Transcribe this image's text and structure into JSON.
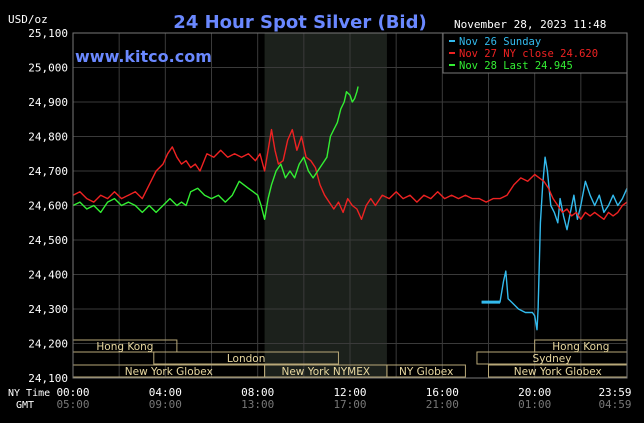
{
  "chart_data": {
    "type": "line",
    "title": "24 Hour Spot Silver (Bid)",
    "ylabel": "USD/oz",
    "watermark": "www.kitco.com",
    "timestamp": "November 28, 2023 11:48",
    "ylim": [
      24.1,
      25.1
    ],
    "xlim": [
      0,
      24
    ],
    "grid": true,
    "legend_position": "top-right",
    "y_ticks": [
      {
        "value": 25.1,
        "label": "25,100"
      },
      {
        "value": 25.0,
        "label": "25,000"
      },
      {
        "value": 24.9,
        "label": "24,900"
      },
      {
        "value": 24.8,
        "label": "24,800"
      },
      {
        "value": 24.7,
        "label": "24,700"
      },
      {
        "value": 24.6,
        "label": "24,600"
      },
      {
        "value": 24.5,
        "label": "24,500"
      },
      {
        "value": 24.4,
        "label": "24,400"
      },
      {
        "value": 24.3,
        "label": "24,300"
      },
      {
        "value": 24.2,
        "label": "24,200"
      },
      {
        "value": 24.1,
        "label": "24,100"
      }
    ],
    "x_ticks": [
      {
        "value": 0,
        "ny": "00:00",
        "gmt": "05:00"
      },
      {
        "value": 4,
        "ny": "04:00",
        "gmt": "09:00"
      },
      {
        "value": 8,
        "ny": "08:00",
        "gmt": "13:00"
      },
      {
        "value": 12,
        "ny": "12:00",
        "gmt": "17:00"
      },
      {
        "value": 16,
        "ny": "16:00",
        "gmt": "21:00"
      },
      {
        "value": 20,
        "ny": "20:00",
        "gmt": "01:00"
      },
      {
        "value": 24,
        "ny": "23:59",
        "gmt": "04:59"
      }
    ],
    "axis_row_labels": {
      "ny": "NY Time",
      "gmt": "GMT"
    },
    "shaded_session": {
      "start": 8.3,
      "end": 13.6
    },
    "sessions": [
      {
        "label": "Hong Kong",
        "start": 0,
        "end": 4.5,
        "row": 0
      },
      {
        "label": "London",
        "start": 3.5,
        "end": 11.5,
        "row": 1
      },
      {
        "label": "New York Globex",
        "start": 0,
        "end": 8.3,
        "row": 2
      },
      {
        "label": "New York NYMEX",
        "start": 8.3,
        "end": 13.6,
        "row": 2
      },
      {
        "label": "NY Globex",
        "start": 13.6,
        "end": 17.0,
        "row": 2
      },
      {
        "label": "Hong Kong",
        "start": 20.0,
        "end": 24,
        "row": 0
      },
      {
        "label": "Sydney",
        "start": 17.5,
        "end": 24,
        "row": 1
      },
      {
        "label": "New York Globex",
        "start": 18.0,
        "end": 24,
        "row": 2
      }
    ],
    "series": [
      {
        "name": "Nov 26 Sunday",
        "color": "#33bbee",
        "points": [
          [
            17.7,
            24.32
          ],
          [
            18.5,
            24.32
          ],
          [
            18.65,
            24.38
          ],
          [
            18.75,
            24.41
          ],
          [
            18.85,
            24.33
          ],
          [
            19.0,
            24.32
          ],
          [
            19.3,
            24.3
          ],
          [
            19.6,
            24.29
          ],
          [
            19.9,
            24.29
          ],
          [
            20.0,
            24.28
          ],
          [
            20.1,
            24.24
          ],
          [
            20.15,
            24.3
          ],
          [
            20.25,
            24.55
          ],
          [
            20.35,
            24.66
          ],
          [
            20.45,
            24.74
          ],
          [
            20.55,
            24.7
          ],
          [
            20.7,
            24.6
          ],
          [
            20.85,
            24.58
          ],
          [
            21.0,
            24.55
          ],
          [
            21.1,
            24.62
          ],
          [
            21.25,
            24.57
          ],
          [
            21.4,
            24.53
          ],
          [
            21.55,
            24.58
          ],
          [
            21.7,
            24.63
          ],
          [
            21.85,
            24.56
          ],
          [
            22.0,
            24.6
          ],
          [
            22.2,
            24.67
          ],
          [
            22.4,
            24.63
          ],
          [
            22.6,
            24.6
          ],
          [
            22.8,
            24.63
          ],
          [
            23.0,
            24.58
          ],
          [
            23.2,
            24.6
          ],
          [
            23.4,
            24.63
          ],
          [
            23.6,
            24.6
          ],
          [
            23.8,
            24.62
          ],
          [
            24.0,
            24.65
          ]
        ]
      },
      {
        "name": "Nov 27 NY close 24.620",
        "color": "#ee2222",
        "points": [
          [
            0.0,
            24.63
          ],
          [
            0.3,
            24.64
          ],
          [
            0.6,
            24.62
          ],
          [
            0.9,
            24.61
          ],
          [
            1.2,
            24.63
          ],
          [
            1.5,
            24.62
          ],
          [
            1.8,
            24.64
          ],
          [
            2.1,
            24.62
          ],
          [
            2.4,
            24.63
          ],
          [
            2.7,
            24.64
          ],
          [
            3.0,
            24.62
          ],
          [
            3.3,
            24.66
          ],
          [
            3.6,
            24.7
          ],
          [
            3.9,
            24.72
          ],
          [
            4.1,
            24.75
          ],
          [
            4.3,
            24.77
          ],
          [
            4.5,
            24.74
          ],
          [
            4.7,
            24.72
          ],
          [
            4.9,
            24.73
          ],
          [
            5.1,
            24.71
          ],
          [
            5.3,
            24.72
          ],
          [
            5.5,
            24.7
          ],
          [
            5.8,
            24.75
          ],
          [
            6.1,
            24.74
          ],
          [
            6.4,
            24.76
          ],
          [
            6.7,
            24.74
          ],
          [
            7.0,
            24.75
          ],
          [
            7.3,
            24.74
          ],
          [
            7.6,
            24.75
          ],
          [
            7.9,
            24.73
          ],
          [
            8.1,
            24.75
          ],
          [
            8.3,
            24.7
          ],
          [
            8.45,
            24.76
          ],
          [
            8.6,
            24.82
          ],
          [
            8.75,
            24.76
          ],
          [
            8.9,
            24.72
          ],
          [
            9.1,
            24.73
          ],
          [
            9.3,
            24.79
          ],
          [
            9.5,
            24.82
          ],
          [
            9.7,
            24.76
          ],
          [
            9.9,
            24.8
          ],
          [
            10.1,
            24.74
          ],
          [
            10.3,
            24.73
          ],
          [
            10.5,
            24.71
          ],
          [
            10.7,
            24.66
          ],
          [
            10.9,
            24.63
          ],
          [
            11.1,
            24.61
          ],
          [
            11.3,
            24.59
          ],
          [
            11.5,
            24.61
          ],
          [
            11.7,
            24.58
          ],
          [
            11.9,
            24.62
          ],
          [
            12.1,
            24.6
          ],
          [
            12.3,
            24.59
          ],
          [
            12.5,
            24.56
          ],
          [
            12.7,
            24.6
          ],
          [
            12.9,
            24.62
          ],
          [
            13.1,
            24.6
          ],
          [
            13.4,
            24.63
          ],
          [
            13.7,
            24.62
          ],
          [
            14.0,
            24.64
          ],
          [
            14.3,
            24.62
          ],
          [
            14.6,
            24.63
          ],
          [
            14.9,
            24.61
          ],
          [
            15.2,
            24.63
          ],
          [
            15.5,
            24.62
          ],
          [
            15.8,
            24.64
          ],
          [
            16.1,
            24.62
          ],
          [
            16.4,
            24.63
          ],
          [
            16.7,
            24.62
          ],
          [
            17.0,
            24.63
          ],
          [
            17.3,
            24.62
          ],
          [
            17.6,
            24.62
          ],
          [
            17.9,
            24.61
          ],
          [
            18.2,
            24.62
          ],
          [
            18.5,
            24.62
          ],
          [
            18.8,
            24.63
          ],
          [
            19.1,
            24.66
          ],
          [
            19.4,
            24.68
          ],
          [
            19.7,
            24.67
          ],
          [
            20.0,
            24.69
          ],
          [
            20.2,
            24.68
          ],
          [
            20.4,
            24.67
          ],
          [
            20.6,
            24.65
          ],
          [
            20.8,
            24.62
          ],
          [
            21.0,
            24.6
          ],
          [
            21.2,
            24.58
          ],
          [
            21.4,
            24.59
          ],
          [
            21.6,
            24.57
          ],
          [
            21.8,
            24.58
          ],
          [
            22.0,
            24.56
          ],
          [
            22.2,
            24.58
          ],
          [
            22.4,
            24.57
          ],
          [
            22.6,
            24.58
          ],
          [
            22.8,
            24.57
          ],
          [
            23.0,
            24.56
          ],
          [
            23.2,
            24.58
          ],
          [
            23.4,
            24.57
          ],
          [
            23.6,
            24.58
          ],
          [
            23.8,
            24.6
          ],
          [
            24.0,
            24.61
          ]
        ]
      },
      {
        "name": "Nov 28 Last 24.945",
        "color": "#33ee33",
        "points": [
          [
            0.0,
            24.6
          ],
          [
            0.3,
            24.61
          ],
          [
            0.6,
            24.59
          ],
          [
            0.9,
            24.6
          ],
          [
            1.2,
            24.58
          ],
          [
            1.5,
            24.61
          ],
          [
            1.8,
            24.62
          ],
          [
            2.1,
            24.6
          ],
          [
            2.4,
            24.61
          ],
          [
            2.7,
            24.6
          ],
          [
            3.0,
            24.58
          ],
          [
            3.3,
            24.6
          ],
          [
            3.6,
            24.58
          ],
          [
            3.9,
            24.6
          ],
          [
            4.2,
            24.62
          ],
          [
            4.5,
            24.6
          ],
          [
            4.7,
            24.61
          ],
          [
            4.9,
            24.6
          ],
          [
            5.1,
            24.64
          ],
          [
            5.4,
            24.65
          ],
          [
            5.7,
            24.63
          ],
          [
            6.0,
            24.62
          ],
          [
            6.3,
            24.63
          ],
          [
            6.6,
            24.61
          ],
          [
            6.9,
            24.63
          ],
          [
            7.2,
            24.67
          ],
          [
            7.4,
            24.66
          ],
          [
            7.6,
            24.65
          ],
          [
            7.8,
            24.64
          ],
          [
            8.0,
            24.63
          ],
          [
            8.15,
            24.6
          ],
          [
            8.3,
            24.56
          ],
          [
            8.45,
            24.62
          ],
          [
            8.6,
            24.66
          ],
          [
            8.8,
            24.7
          ],
          [
            9.0,
            24.72
          ],
          [
            9.2,
            24.68
          ],
          [
            9.4,
            24.7
          ],
          [
            9.6,
            24.68
          ],
          [
            9.8,
            24.72
          ],
          [
            10.0,
            24.74
          ],
          [
            10.2,
            24.7
          ],
          [
            10.4,
            24.68
          ],
          [
            10.6,
            24.7
          ],
          [
            10.8,
            24.72
          ],
          [
            11.0,
            24.74
          ],
          [
            11.15,
            24.8
          ],
          [
            11.3,
            24.82
          ],
          [
            11.45,
            24.84
          ],
          [
            11.6,
            24.88
          ],
          [
            11.75,
            24.9
          ],
          [
            11.85,
            24.93
          ],
          [
            12.0,
            24.92
          ],
          [
            12.1,
            24.9
          ],
          [
            12.2,
            24.91
          ],
          [
            12.3,
            24.93
          ],
          [
            12.35,
            24.945
          ]
        ]
      }
    ]
  }
}
